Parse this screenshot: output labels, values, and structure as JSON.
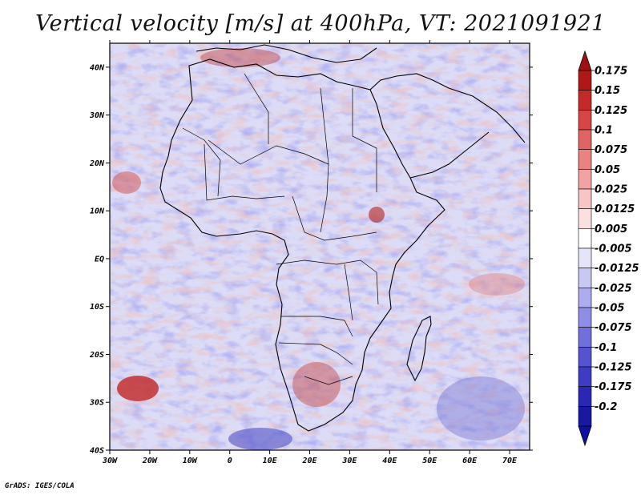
{
  "title": "Vertical velocity [m/s] at 400hPa, VT: 2021091921",
  "credit": "GrADS: IGES/COLA",
  "map": {
    "lon_range": [
      -30,
      75
    ],
    "lat_range": [
      -40,
      45
    ],
    "lon_ticks": [
      "30W",
      "20W",
      "10W",
      "0",
      "10E",
      "20E",
      "30E",
      "40E",
      "50E",
      "60E",
      "70E"
    ],
    "lat_ticks": [
      "40N",
      "30N",
      "20N",
      "10N",
      "EQ",
      "10S",
      "20S",
      "30S",
      "40S"
    ]
  },
  "colorbar": {
    "labels": [
      "0.175",
      "0.15",
      "0.125",
      "0.1",
      "0.075",
      "0.05",
      "0.025",
      "0.0125",
      "0.005",
      "-0.005",
      "-0.0125",
      "-0.025",
      "-0.05",
      "-0.075",
      "-0.1",
      "-0.125",
      "-0.175",
      "-0.2"
    ],
    "colors": [
      "#b01818",
      "#c42a2a",
      "#d64646",
      "#e06464",
      "#ea8282",
      "#f2a2a2",
      "#f8c4c4",
      "#fce0e0",
      "#ffffff",
      "#e4e4fa",
      "#c8c8f4",
      "#acacee",
      "#8e8ee6",
      "#7070dc",
      "#5454d0",
      "#3c3cc4",
      "#2828b4",
      "#1818a0"
    ],
    "top_arrow_color": "#a01010",
    "bottom_arrow_color": "#1010a0"
  }
}
